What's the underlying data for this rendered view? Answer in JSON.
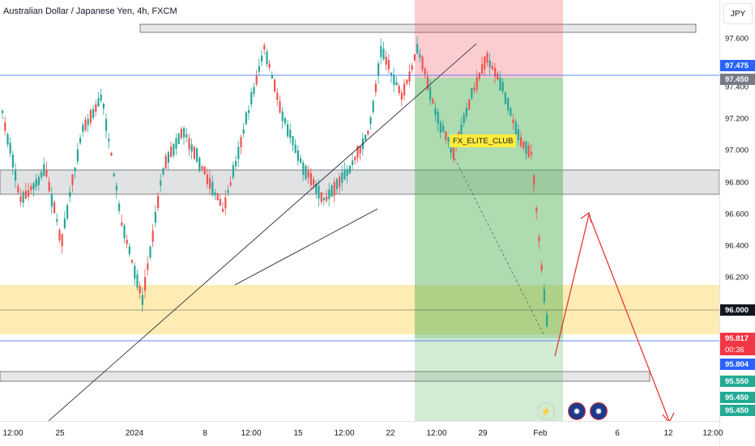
{
  "title": "Australian Dollar / Japanese Yen, 4h, FXCM",
  "currency_button": "JPY",
  "watermark_text": "FX_ELITE_CLUB",
  "price_ticks": [
    "97.600",
    "97.400",
    "97.200",
    "97.000",
    "96.800",
    "96.600",
    "96.400",
    "96.200"
  ],
  "price_tags": [
    {
      "label": "97.475",
      "color": "#2962ff"
    },
    {
      "label": "97.450",
      "color": "#787b86"
    },
    {
      "label": "96.000",
      "color": "#131722"
    },
    {
      "label": "95.817",
      "color": "#f23645"
    },
    {
      "label": "00:36",
      "color": "#f23645"
    },
    {
      "label": "95.804",
      "color": "#2962ff"
    },
    {
      "label": "95.550",
      "color": "#22ab94"
    },
    {
      "label": "95.450",
      "color": "#22ab94"
    },
    {
      "label": "95.450",
      "color": "#22ab94"
    }
  ],
  "time_labels": [
    "12:00",
    "25",
    "2024",
    "8",
    "12:00",
    "15",
    "12:00",
    "22",
    "12:00",
    "29",
    "Feb",
    "6",
    "12",
    "12:00"
  ],
  "event_icons": [
    "lightning-icon",
    "australia-flag-icon",
    "australia-flag-icon"
  ],
  "colors": {
    "up": "#26a69a",
    "down": "#ef5350",
    "stop_zone": "rgba(242,54,69,0.25)",
    "target_zone": "rgba(76,175,80,0.45)",
    "supply_zone": "rgba(255,193,7,0.30)",
    "grey_zone": "rgba(120,123,134,0.22)",
    "blue_line": "#2962ff",
    "red_projection": "#e53935"
  }
}
